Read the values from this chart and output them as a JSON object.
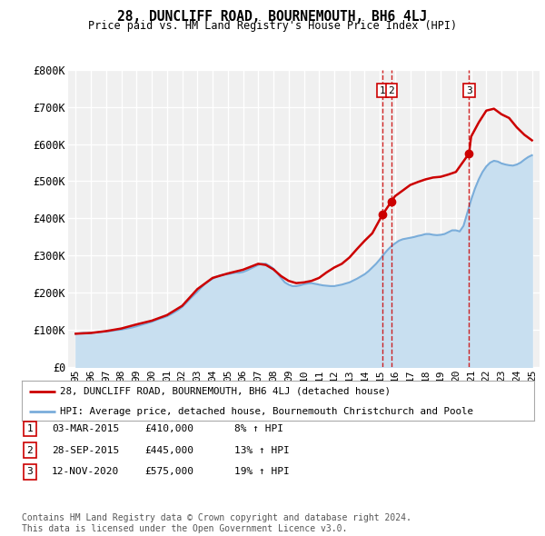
{
  "title": "28, DUNCLIFF ROAD, BOURNEMOUTH, BH6 4LJ",
  "subtitle": "Price paid vs. HM Land Registry's House Price Index (HPI)",
  "ylim": [
    0,
    800000
  ],
  "yticks": [
    0,
    100000,
    200000,
    300000,
    400000,
    500000,
    600000,
    700000,
    800000
  ],
  "ytick_labels": [
    "£0",
    "£100K",
    "£200K",
    "£300K",
    "£400K",
    "£500K",
    "£600K",
    "£700K",
    "£800K"
  ],
  "xlim": [
    1994.5,
    2025.5
  ],
  "background_color": "#ffffff",
  "plot_bg_color": "#f0f0f0",
  "grid_color": "#ffffff",
  "red_line_color": "#cc0000",
  "blue_line_color": "#7aadda",
  "blue_fill_color": "#c8dff0",
  "legend_label_red": "28, DUNCLIFF ROAD, BOURNEMOUTH, BH6 4LJ (detached house)",
  "legend_label_blue": "HPI: Average price, detached house, Bournemouth Christchurch and Poole",
  "transactions": [
    {
      "num": 1,
      "date": "03-MAR-2015",
      "price": "£410,000",
      "pct": "8%",
      "arrow": "↑",
      "year": 2015.17
    },
    {
      "num": 2,
      "date": "28-SEP-2015",
      "price": "£445,000",
      "pct": "13%",
      "arrow": "↑",
      "year": 2015.75
    },
    {
      "num": 3,
      "date": "12-NOV-2020",
      "price": "£575,000",
      "pct": "19%",
      "arrow": "↑",
      "year": 2020.87
    }
  ],
  "footer": "Contains HM Land Registry data © Crown copyright and database right 2024.\nThis data is licensed under the Open Government Licence v3.0.",
  "hpi_years": [
    1995,
    1995.25,
    1995.5,
    1995.75,
    1996,
    1996.25,
    1996.5,
    1996.75,
    1997,
    1997.25,
    1997.5,
    1997.75,
    1998,
    1998.25,
    1998.5,
    1998.75,
    1999,
    1999.25,
    1999.5,
    1999.75,
    2000,
    2000.25,
    2000.5,
    2000.75,
    2001,
    2001.25,
    2001.5,
    2001.75,
    2002,
    2002.25,
    2002.5,
    2002.75,
    2003,
    2003.25,
    2003.5,
    2003.75,
    2004,
    2004.25,
    2004.5,
    2004.75,
    2005,
    2005.25,
    2005.5,
    2005.75,
    2006,
    2006.25,
    2006.5,
    2006.75,
    2007,
    2007.25,
    2007.5,
    2007.75,
    2008,
    2008.25,
    2008.5,
    2008.75,
    2009,
    2009.25,
    2009.5,
    2009.75,
    2010,
    2010.25,
    2010.5,
    2010.75,
    2011,
    2011.25,
    2011.5,
    2011.75,
    2012,
    2012.25,
    2012.5,
    2012.75,
    2013,
    2013.25,
    2013.5,
    2013.75,
    2014,
    2014.25,
    2014.5,
    2014.75,
    2015,
    2015.25,
    2015.5,
    2015.75,
    2016,
    2016.25,
    2016.5,
    2016.75,
    2017,
    2017.25,
    2017.5,
    2017.75,
    2018,
    2018.25,
    2018.5,
    2018.75,
    2019,
    2019.25,
    2019.5,
    2019.75,
    2020,
    2020.25,
    2020.5,
    2020.75,
    2021,
    2021.25,
    2021.5,
    2021.75,
    2022,
    2022.25,
    2022.5,
    2022.75,
    2023,
    2023.25,
    2023.5,
    2023.75,
    2024,
    2024.25,
    2024.5,
    2024.75,
    2025
  ],
  "hpi_values": [
    90000,
    91000,
    92000,
    91500,
    92000,
    93000,
    94000,
    95000,
    96000,
    97000,
    98500,
    100000,
    101000,
    103000,
    105000,
    107000,
    110000,
    113000,
    116000,
    119000,
    122000,
    126000,
    130000,
    133000,
    137000,
    142000,
    148000,
    154000,
    162000,
    172000,
    183000,
    193000,
    203000,
    214000,
    224000,
    232000,
    238000,
    243000,
    247000,
    249000,
    250000,
    252000,
    254000,
    254000,
    256000,
    260000,
    265000,
    270000,
    275000,
    278000,
    278000,
    272000,
    265000,
    253000,
    240000,
    228000,
    222000,
    218000,
    218000,
    220000,
    223000,
    225000,
    226000,
    224000,
    222000,
    220000,
    219000,
    218000,
    218000,
    220000,
    222000,
    225000,
    228000,
    233000,
    238000,
    244000,
    250000,
    258000,
    268000,
    278000,
    290000,
    303000,
    315000,
    325000,
    333000,
    340000,
    344000,
    346000,
    348000,
    350000,
    353000,
    355000,
    358000,
    358000,
    356000,
    355000,
    356000,
    358000,
    363000,
    368000,
    368000,
    365000,
    380000,
    415000,
    450000,
    480000,
    505000,
    525000,
    540000,
    550000,
    555000,
    553000,
    548000,
    545000,
    543000,
    542000,
    545000,
    550000,
    558000,
    565000,
    570000
  ],
  "property_years": [
    1995,
    1996,
    1997,
    1998,
    1999,
    2000,
    2001,
    2002,
    2003,
    2004,
    2005,
    2006,
    2007,
    2007.5,
    2008,
    2008.5,
    2009,
    2009.5,
    2010,
    2010.5,
    2011,
    2011.5,
    2012,
    2012.5,
    2013,
    2013.5,
    2014,
    2014.5,
    2015.17,
    2015.75,
    2016,
    2016.5,
    2017,
    2017.5,
    2018,
    2018.5,
    2019,
    2019.5,
    2020,
    2020.87,
    2021,
    2021.5,
    2022,
    2022.5,
    2023,
    2023.5,
    2024,
    2024.5,
    2025
  ],
  "property_values": [
    90000,
    92000,
    97000,
    104000,
    115000,
    125000,
    140000,
    165000,
    210000,
    240000,
    252000,
    262000,
    278000,
    275000,
    263000,
    245000,
    232000,
    226000,
    228000,
    232000,
    240000,
    255000,
    268000,
    278000,
    295000,
    318000,
    340000,
    360000,
    410000,
    445000,
    460000,
    475000,
    490000,
    498000,
    505000,
    510000,
    512000,
    518000,
    525000,
    575000,
    620000,
    658000,
    690000,
    695000,
    680000,
    670000,
    645000,
    625000,
    610000
  ]
}
